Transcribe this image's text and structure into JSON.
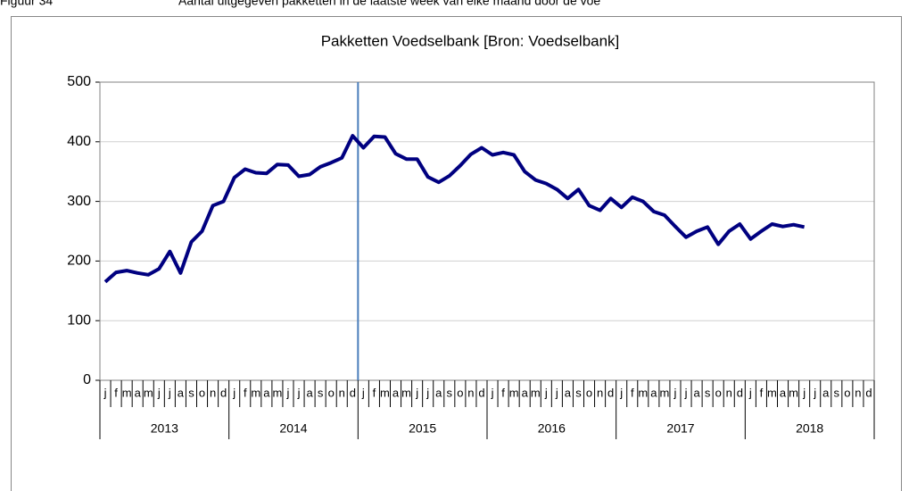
{
  "caption": {
    "number": "Figuur 34",
    "text": "Aantal uitgegeven pakketten in de laatste week van elke maand door de voe"
  },
  "chart_data": {
    "type": "line",
    "title": "Pakketten Voedselbank [Bron: Voedselbank]",
    "categories": [
      "j",
      "f",
      "m",
      "a",
      "m",
      "j",
      "j",
      "a",
      "s",
      "o",
      "n",
      "d",
      "j",
      "f",
      "m",
      "a",
      "m",
      "j",
      "j",
      "a",
      "s",
      "o",
      "n",
      "d",
      "j",
      "f",
      "m",
      "a",
      "m",
      "j",
      "j",
      "a",
      "s",
      "o",
      "n",
      "d",
      "j",
      "f",
      "m",
      "a",
      "m",
      "j",
      "j",
      "a",
      "s",
      "o",
      "n",
      "d",
      "j",
      "f",
      "m",
      "a",
      "m",
      "j",
      "j",
      "a",
      "s",
      "o",
      "n",
      "d",
      "j",
      "f",
      "m",
      "a",
      "m",
      "j",
      "j",
      "a",
      "s",
      "o",
      "n",
      "d"
    ],
    "years": [
      "2013",
      "2014",
      "2015",
      "2016",
      "2017",
      "2018"
    ],
    "series": [
      {
        "name": "Pakketten",
        "color": "#000080",
        "values": [
          165,
          181,
          184,
          180,
          177,
          187,
          216,
          180,
          232,
          250,
          293,
          300,
          340,
          354,
          348,
          347,
          362,
          361,
          342,
          345,
          358,
          365,
          373,
          410,
          390,
          409,
          408,
          380,
          371,
          371,
          341,
          332,
          343,
          360,
          379,
          390,
          378,
          382,
          378,
          350,
          336,
          330,
          320,
          305,
          320,
          293,
          285,
          305,
          290,
          307,
          300,
          283,
          277,
          258,
          240,
          250,
          257,
          228,
          250,
          262,
          237,
          250,
          262,
          258,
          261,
          257,
          null,
          null,
          null,
          null,
          null,
          null
        ]
      }
    ],
    "ylim": [
      0,
      500
    ],
    "yticks": [
      0,
      100,
      200,
      300,
      400,
      500
    ],
    "grid": true
  }
}
